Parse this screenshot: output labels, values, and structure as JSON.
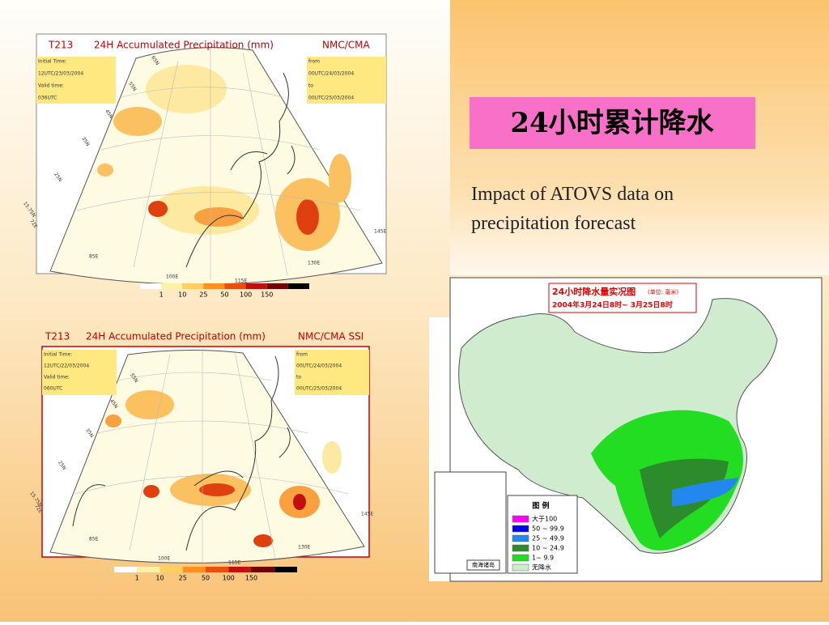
{
  "heading": "24小时累计降水",
  "subtitle": "Impact of ATOVS data on precipitation forecast",
  "panels": [
    {
      "title": [
        "T213",
        "24H Accumulated Precipitation (mm)",
        "NMC/CMA"
      ],
      "left_info": [
        "Initial Time:",
        "12UTC/23/03/2004",
        "Valid time:",
        "036UTC"
      ],
      "right_info": [
        "from",
        "00UTC/24/03/2004",
        "to",
        "00UTC/25/03/2004"
      ],
      "lat_labels": [
        "65N",
        "55N",
        "45N",
        "35N",
        "25N",
        "15.75N",
        "72E"
      ],
      "lon_labels": [
        "85E",
        "100E",
        "115E",
        "130E",
        "145E"
      ],
      "colorbar": [
        1,
        10,
        25,
        50,
        100,
        150
      ]
    },
    {
      "title": [
        "T213",
        "24H Accumulated Precipitation (mm)",
        "NMC/CMA SSI"
      ],
      "left_info": [
        "Initial Time:",
        "12UTC/22/03/2004",
        "Valid time:",
        "060UTC"
      ],
      "right_info": [
        "from",
        "00UTC/24/03/2004",
        "to",
        "00UTC/25/03/2004"
      ],
      "lat_labels": [
        "55N",
        "45N",
        "35N",
        "25N",
        "15.75N",
        "72E"
      ],
      "lon_labels": [
        "85E",
        "100E",
        "115E",
        "130E",
        "145E"
      ],
      "colorbar": [
        1,
        10,
        25,
        50,
        100,
        150
      ]
    }
  ],
  "observed": {
    "title": "24小时降水量实况图",
    "unit": "(单位: 毫米)",
    "period": "2004年3月24日8时~ 3月25日8时",
    "legend_title": "图  例",
    "legend": [
      "大于100",
      "50 ~ 99.9",
      "25 ~ 49.9",
      "10 ~ 24.9",
      "1~ 9.9",
      "无降水"
    ],
    "inset": "南海诸岛"
  }
}
